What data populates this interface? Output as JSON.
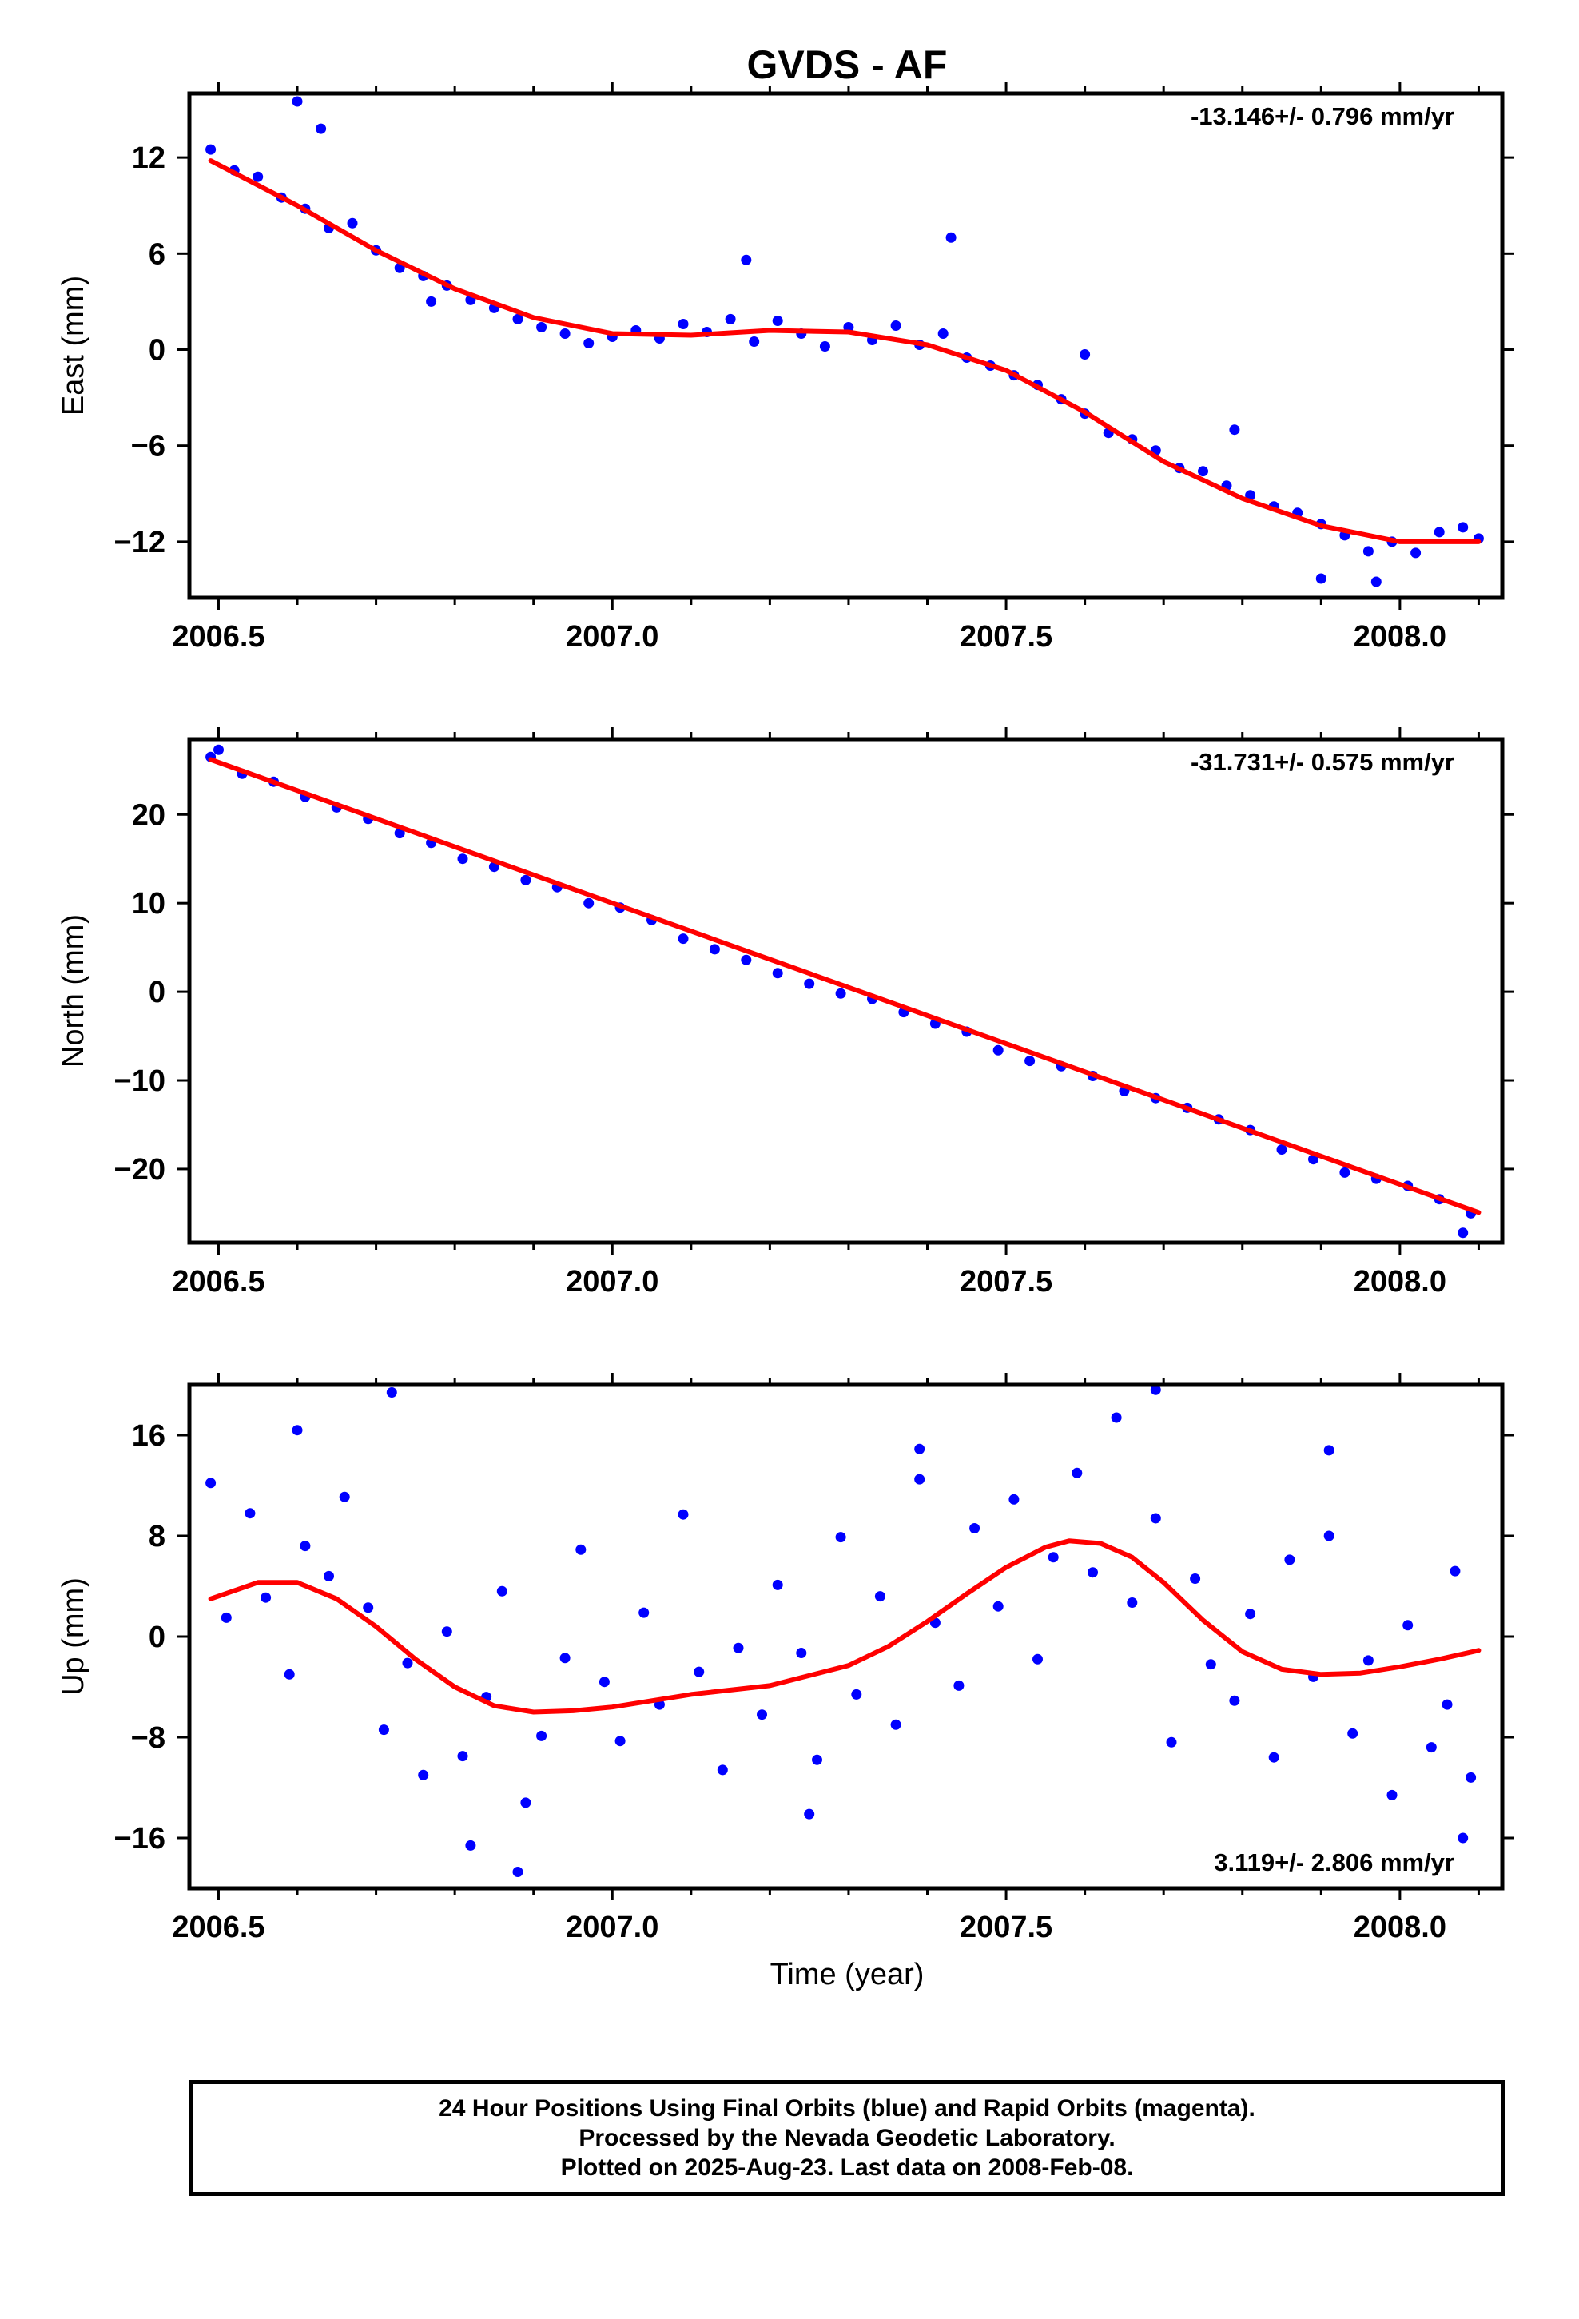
{
  "figure": {
    "title": "GVDS - AF",
    "x_axis_label": "Time (year)"
  },
  "colors": {
    "points": "#0000ff",
    "fit": "#ff0000",
    "frame": "#000000"
  },
  "footer": {
    "line1": "24 Hour Positions Using Final Orbits (blue) and Rapid Orbits (magenta).",
    "line2": "Processed by the Nevada Geodetic Laboratory.",
    "line3": "Plotted on 2025-Aug-23. Last data on 2008-Feb-08."
  },
  "chart_data": [
    {
      "type": "scatter",
      "id": "east",
      "ylabel": "East (mm)",
      "rate_text": "-13.146+/- 0.796 mm/yr",
      "rate_position": "top-right",
      "xlim": [
        2006.463,
        2008.13
      ],
      "ylim": [
        -15.5,
        16
      ],
      "xticks": [
        2006.5,
        2007.0,
        2007.5,
        2008.0
      ],
      "xtick_labels": [
        "2006.5",
        "2007.0",
        "2007.5",
        "2008.0"
      ],
      "yticks": [
        -12,
        -6,
        0,
        6,
        12
      ],
      "ytick_labels": [
        "−12",
        "−6",
        "0",
        "6",
        "12"
      ],
      "series": [
        {
          "kind": "points",
          "color": "#0000ff",
          "x": [
            2006.49,
            2006.52,
            2006.55,
            2006.58,
            2006.61,
            2006.64,
            2006.67,
            2006.7,
            2006.73,
            2006.76,
            2006.79,
            2006.82,
            2006.85,
            2006.88,
            2006.91,
            2006.94,
            2006.97,
            2007.0,
            2007.03,
            2007.06,
            2007.09,
            2007.12,
            2007.15,
            2007.18,
            2007.21,
            2007.24,
            2007.27,
            2007.3,
            2007.33,
            2007.36,
            2007.39,
            2007.42,
            2007.45,
            2007.48,
            2007.51,
            2007.54,
            2007.57,
            2007.6,
            2007.63,
            2007.66,
            2007.69,
            2007.72,
            2007.75,
            2007.78,
            2007.81,
            2007.84,
            2007.87,
            2007.9,
            2007.93,
            2007.96,
            2007.99,
            2008.02,
            2008.05,
            2008.08,
            2008.1,
            2006.6,
            2006.63,
            2006.77,
            2007.17,
            2007.43,
            2007.6,
            2007.79,
            2007.9,
            2007.97
          ],
          "y": [
            12.5,
            11.2,
            10.8,
            9.5,
            8.8,
            7.6,
            7.9,
            6.2,
            5.1,
            4.6,
            4.0,
            3.1,
            2.6,
            1.9,
            1.4,
            1.0,
            0.4,
            0.8,
            1.2,
            0.7,
            1.6,
            1.1,
            1.9,
            0.5,
            1.8,
            1.0,
            0.2,
            1.4,
            0.6,
            1.5,
            0.3,
            1.0,
            -0.5,
            -1.0,
            -1.6,
            -2.2,
            -3.1,
            -4.0,
            -5.2,
            -5.6,
            -6.3,
            -7.4,
            -7.6,
            -8.5,
            -9.1,
            -9.8,
            -10.2,
            -10.9,
            -11.6,
            -12.6,
            -12.0,
            -12.7,
            -11.4,
            -11.1,
            -11.8,
            15.5,
            13.8,
            3.0,
            5.6,
            7.0,
            -0.3,
            -5.0,
            -14.3,
            -14.5
          ]
        },
        {
          "kind": "fit",
          "color": "#ff0000",
          "x": [
            2006.49,
            2006.6,
            2006.7,
            2006.8,
            2006.9,
            2007.0,
            2007.1,
            2007.2,
            2007.3,
            2007.4,
            2007.5,
            2007.6,
            2007.7,
            2007.8,
            2007.9,
            2008.0,
            2008.1
          ],
          "y": [
            11.8,
            9.0,
            6.2,
            3.8,
            2.0,
            1.0,
            0.9,
            1.2,
            1.1,
            0.3,
            -1.3,
            -3.9,
            -7.0,
            -9.3,
            -11.0,
            -12.0,
            -12.0
          ]
        }
      ]
    },
    {
      "type": "scatter",
      "id": "north",
      "ylabel": "North (mm)",
      "rate_text": "-31.731+/- 0.575 mm/yr",
      "rate_position": "top-right",
      "xlim": [
        2006.463,
        2008.13
      ],
      "ylim": [
        -28.3,
        28.5
      ],
      "xticks": [
        2006.5,
        2007.0,
        2007.5,
        2008.0
      ],
      "xtick_labels": [
        "2006.5",
        "2007.0",
        "2007.5",
        "2008.0"
      ],
      "yticks": [
        -20,
        -10,
        0,
        10,
        20
      ],
      "ytick_labels": [
        "−20",
        "−10",
        "0",
        "10",
        "20"
      ],
      "series": [
        {
          "kind": "points",
          "color": "#0000ff",
          "x": [
            2006.49,
            2006.53,
            2006.57,
            2006.61,
            2006.65,
            2006.69,
            2006.73,
            2006.77,
            2006.81,
            2006.85,
            2006.89,
            2006.93,
            2006.97,
            2007.01,
            2007.05,
            2007.09,
            2007.13,
            2007.17,
            2007.21,
            2007.25,
            2007.29,
            2007.33,
            2007.37,
            2007.41,
            2007.45,
            2007.49,
            2007.53,
            2007.57,
            2007.61,
            2007.65,
            2007.69,
            2007.73,
            2007.77,
            2007.81,
            2007.85,
            2007.89,
            2007.93,
            2007.97,
            2008.01,
            2008.05,
            2008.09,
            2008.08,
            2006.5
          ],
          "y": [
            26.5,
            24.6,
            23.7,
            22.0,
            20.8,
            19.5,
            17.9,
            16.8,
            15.0,
            14.1,
            12.6,
            11.8,
            10.0,
            9.5,
            8.1,
            6.0,
            4.8,
            3.6,
            2.1,
            0.9,
            -0.2,
            -0.8,
            -2.3,
            -3.6,
            -4.5,
            -6.6,
            -7.8,
            -8.4,
            -9.5,
            -11.2,
            -12.0,
            -13.1,
            -14.4,
            -15.6,
            -17.8,
            -18.9,
            -20.4,
            -21.1,
            -21.9,
            -23.4,
            -25.0,
            -27.2,
            27.3
          ]
        },
        {
          "kind": "fit",
          "color": "#ff0000",
          "x": [
            2006.49,
            2008.1
          ],
          "y": [
            26.2,
            -24.9
          ]
        }
      ]
    },
    {
      "type": "scatter",
      "id": "up",
      "ylabel": "Up (mm)",
      "rate_text": "3.119+/- 2.806 mm/yr",
      "rate_position": "bottom-right",
      "xlim": [
        2006.463,
        2008.13
      ],
      "ylim": [
        -20,
        20
      ],
      "xticks": [
        2006.5,
        2007.0,
        2007.5,
        2008.0
      ],
      "xtick_labels": [
        "2006.5",
        "2007.0",
        "2007.5",
        "2008.0"
      ],
      "yticks": [
        -16,
        -8,
        0,
        8,
        16
      ],
      "ytick_labels": [
        "−16",
        "−8",
        "0",
        "8",
        "16"
      ],
      "series": [
        {
          "kind": "points",
          "color": "#0000ff",
          "x": [
            2006.49,
            2006.51,
            2006.54,
            2006.56,
            2006.59,
            2006.61,
            2006.64,
            2006.66,
            2006.69,
            2006.71,
            2006.74,
            2006.76,
            2006.79,
            2006.81,
            2006.84,
            2006.86,
            2006.89,
            2006.91,
            2006.94,
            2006.96,
            2006.99,
            2007.01,
            2007.04,
            2007.06,
            2007.09,
            2007.11,
            2007.14,
            2007.16,
            2007.19,
            2007.21,
            2007.24,
            2007.26,
            2007.29,
            2007.31,
            2007.34,
            2007.36,
            2007.39,
            2007.41,
            2007.44,
            2007.46,
            2007.49,
            2007.51,
            2007.54,
            2007.56,
            2007.59,
            2007.61,
            2007.64,
            2007.66,
            2007.69,
            2007.71,
            2007.74,
            2007.76,
            2007.79,
            2007.81,
            2007.84,
            2007.86,
            2007.89,
            2007.91,
            2007.94,
            2007.96,
            2007.99,
            2008.01,
            2008.04,
            2008.06,
            2008.09,
            2006.72,
            2006.6,
            2006.88,
            2007.69,
            2007.39,
            2007.91,
            2008.08,
            2007.25,
            2006.82,
            2008.07
          ],
          "y": [
            12.2,
            1.5,
            9.8,
            3.1,
            -3.0,
            7.2,
            4.8,
            11.1,
            2.3,
            -7.4,
            -2.1,
            -11.0,
            0.4,
            -9.5,
            -4.8,
            3.6,
            -13.2,
            -7.9,
            -1.7,
            6.9,
            -3.6,
            -8.3,
            1.9,
            -5.4,
            9.7,
            -2.8,
            -10.6,
            -0.9,
            -6.2,
            4.1,
            -1.3,
            -9.8,
            7.9,
            -4.6,
            3.2,
            -7.0,
            12.5,
            1.1,
            -3.9,
            8.6,
            2.4,
            10.9,
            -1.8,
            6.3,
            13.0,
            5.1,
            17.4,
            2.7,
            9.4,
            -8.4,
            4.6,
            -2.2,
            -5.1,
            1.8,
            -9.6,
            6.1,
            -3.2,
            14.8,
            -7.7,
            -1.9,
            -12.6,
            0.9,
            -8.8,
            -5.4,
            -11.2,
            19.4,
            16.4,
            -18.7,
            19.6,
            14.9,
            8.0,
            -16.0,
            -14.1,
            -16.6,
            5.2
          ]
        },
        {
          "kind": "fit",
          "color": "#ff0000",
          "x": [
            2006.49,
            2006.55,
            2006.6,
            2006.65,
            2006.7,
            2006.75,
            2006.8,
            2006.85,
            2006.9,
            2006.95,
            2007.0,
            2007.1,
            2007.2,
            2007.3,
            2007.35,
            2007.4,
            2007.45,
            2007.5,
            2007.55,
            2007.58,
            2007.62,
            2007.66,
            2007.7,
            2007.75,
            2007.8,
            2007.85,
            2007.9,
            2007.95,
            2008.0,
            2008.05,
            2008.1
          ],
          "y": [
            3.0,
            4.3,
            4.3,
            3.0,
            0.8,
            -1.8,
            -4.0,
            -5.5,
            -6.0,
            -5.9,
            -5.6,
            -4.6,
            -3.9,
            -2.3,
            -0.8,
            1.2,
            3.4,
            5.5,
            7.1,
            7.6,
            7.4,
            6.3,
            4.3,
            1.3,
            -1.2,
            -2.6,
            -3.0,
            -2.9,
            -2.4,
            -1.8,
            -1.1
          ]
        }
      ]
    }
  ]
}
